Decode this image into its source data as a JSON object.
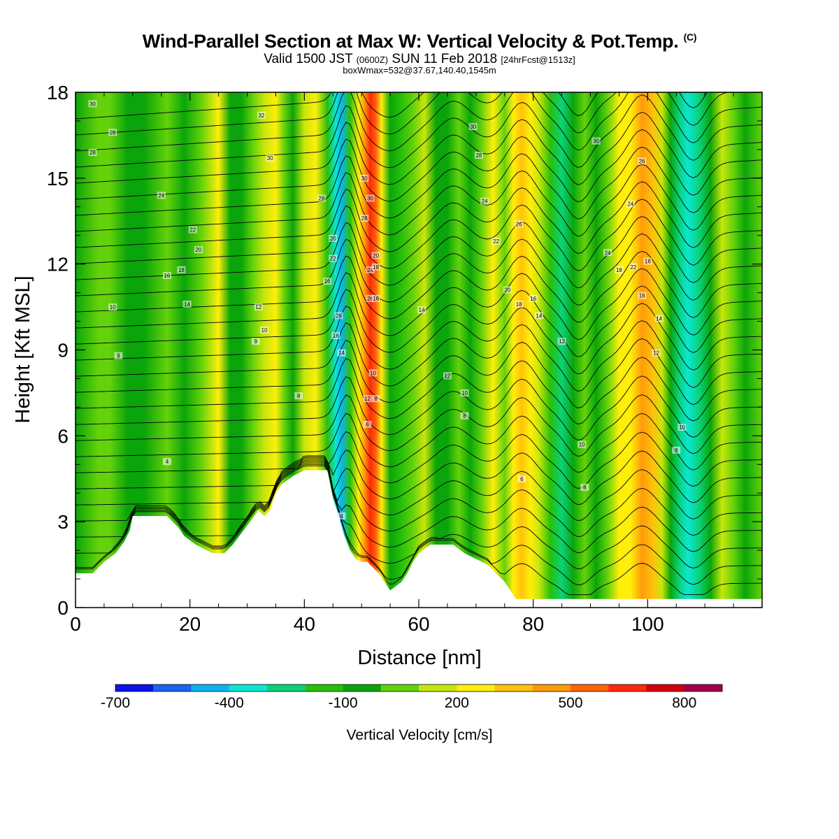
{
  "header": {
    "title": "Wind-Parallel Section at Max W: Vertical Velocity & Pot.Temp.",
    "title_suffix": "(C)",
    "valid_prefix": "Valid 1500 JST",
    "valid_zulu": "(0600Z)",
    "valid_date": "SUN 11 Feb 2018",
    "valid_fcst": "[24hrFcst@1513z]",
    "box_info": "boxWmax=532@37.67,140.40,1545m"
  },
  "chart_data": {
    "type": "heatmap",
    "xlabel": "Distance [nm]",
    "ylabel": "Height [Kft MSL]",
    "xlim": [
      0,
      120
    ],
    "ylim": [
      0,
      18
    ],
    "x_ticks": [
      0,
      20,
      40,
      60,
      80,
      100
    ],
    "y_ticks": [
      0,
      3,
      6,
      9,
      12,
      15,
      18
    ],
    "grid": false,
    "colorbar": {
      "label": "Vertical Velocity [cm/s]",
      "tick_labels": [
        "-700",
        "-400",
        "-100",
        "200",
        "500",
        "800"
      ],
      "tick_values": [
        -700,
        -400,
        -100,
        200,
        500,
        800
      ],
      "levels": [
        -700,
        -600,
        -500,
        -400,
        -300,
        -200,
        -100,
        0,
        100,
        200,
        300,
        400,
        500,
        600,
        700,
        800,
        900
      ],
      "colors": [
        "#0a14e6",
        "#1e64f0",
        "#0ab4f0",
        "#0ae6d2",
        "#0ad27a",
        "#28c00a",
        "#0aa50a",
        "#64d20a",
        "#c8e60a",
        "#ffee0a",
        "#ffc30a",
        "#ff9b0a",
        "#ff640a",
        "#ff280a",
        "#d2000a",
        "#a0004a",
        "#6e008c"
      ]
    },
    "vertical_velocity_columns": [
      {
        "x": 0,
        "w": -50
      },
      {
        "x": 4,
        "w": 0
      },
      {
        "x": 6,
        "w": 20
      },
      {
        "x": 9,
        "w": -20
      },
      {
        "x": 12,
        "w": -30
      },
      {
        "x": 16,
        "w": 30
      },
      {
        "x": 19,
        "w": -10
      },
      {
        "x": 22,
        "w": 80
      },
      {
        "x": 25,
        "w": 240
      },
      {
        "x": 27,
        "w": -20
      },
      {
        "x": 29,
        "w": -60
      },
      {
        "x": 31,
        "w": 30
      },
      {
        "x": 33,
        "w": 180
      },
      {
        "x": 35,
        "w": 230
      },
      {
        "x": 36.5,
        "w": 20
      },
      {
        "x": 38,
        "w": -100
      },
      {
        "x": 40,
        "w": 100
      },
      {
        "x": 42,
        "w": 220
      },
      {
        "x": 44,
        "w": -150
      },
      {
        "x": 45.5,
        "w": -350
      },
      {
        "x": 46.5,
        "w": -450
      },
      {
        "x": 48,
        "w": -200
      },
      {
        "x": 49.5,
        "w": 250
      },
      {
        "x": 50.5,
        "w": 450
      },
      {
        "x": 51.5,
        "w": 620
      },
      {
        "x": 52.5,
        "w": 500
      },
      {
        "x": 53.5,
        "w": 250
      },
      {
        "x": 55,
        "w": -40
      },
      {
        "x": 57,
        "w": -140
      },
      {
        "x": 59,
        "w": 30
      },
      {
        "x": 61,
        "w": 150
      },
      {
        "x": 63,
        "w": -20
      },
      {
        "x": 65,
        "w": -80
      },
      {
        "x": 67,
        "w": 60
      },
      {
        "x": 69,
        "w": -100
      },
      {
        "x": 71,
        "w": 80
      },
      {
        "x": 73,
        "w": 200
      },
      {
        "x": 75,
        "w": 60
      },
      {
        "x": 76.5,
        "w": 200
      },
      {
        "x": 78,
        "w": 380
      },
      {
        "x": 79.5,
        "w": 280
      },
      {
        "x": 81,
        "w": 100
      },
      {
        "x": 83,
        "w": -150
      },
      {
        "x": 85,
        "w": -250
      },
      {
        "x": 87,
        "w": -100
      },
      {
        "x": 89,
        "w": 80
      },
      {
        "x": 91,
        "w": -80
      },
      {
        "x": 93,
        "w": 20
      },
      {
        "x": 95,
        "w": 200
      },
      {
        "x": 97,
        "w": 260
      },
      {
        "x": 99,
        "w": 400
      },
      {
        "x": 101,
        "w": 300
      },
      {
        "x": 102.5,
        "w": 150
      },
      {
        "x": 104,
        "w": -100
      },
      {
        "x": 105.5,
        "w": -250
      },
      {
        "x": 107,
        "w": -380
      },
      {
        "x": 109,
        "w": -230
      },
      {
        "x": 111,
        "w": -30
      },
      {
        "x": 113,
        "w": 150
      },
      {
        "x": 115,
        "w": 60
      },
      {
        "x": 117,
        "w": -30
      },
      {
        "x": 120,
        "w": 30
      }
    ],
    "terrain_kft": [
      {
        "x": 0,
        "h": 1.2
      },
      {
        "x": 3,
        "h": 1.2
      },
      {
        "x": 5,
        "h": 1.6
      },
      {
        "x": 7,
        "h": 1.9
      },
      {
        "x": 8.5,
        "h": 2.3
      },
      {
        "x": 9.5,
        "h": 2.7
      },
      {
        "x": 10,
        "h": 3.2
      },
      {
        "x": 16,
        "h": 3.2
      },
      {
        "x": 18,
        "h": 2.8
      },
      {
        "x": 19,
        "h": 2.5
      },
      {
        "x": 21,
        "h": 2.2
      },
      {
        "x": 24,
        "h": 1.9
      },
      {
        "x": 26,
        "h": 1.9
      },
      {
        "x": 27.5,
        "h": 2.2
      },
      {
        "x": 29,
        "h": 2.6
      },
      {
        "x": 30.5,
        "h": 3.0
      },
      {
        "x": 32,
        "h": 3.4
      },
      {
        "x": 33,
        "h": 3.2
      },
      {
        "x": 34,
        "h": 3.4
      },
      {
        "x": 35,
        "h": 4.0
      },
      {
        "x": 36,
        "h": 4.3
      },
      {
        "x": 38,
        "h": 4.6
      },
      {
        "x": 40,
        "h": 4.8
      },
      {
        "x": 44,
        "h": 4.8
      },
      {
        "x": 45,
        "h": 3.8
      },
      {
        "x": 46,
        "h": 3.2
      },
      {
        "x": 47,
        "h": 2.5
      },
      {
        "x": 48,
        "h": 2.0
      },
      {
        "x": 49,
        "h": 1.7
      },
      {
        "x": 50,
        "h": 1.6
      },
      {
        "x": 51,
        "h": 1.6
      },
      {
        "x": 52,
        "h": 1.4
      },
      {
        "x": 53,
        "h": 1.2
      },
      {
        "x": 54,
        "h": 0.9
      },
      {
        "x": 55,
        "h": 0.6
      },
      {
        "x": 57,
        "h": 0.9
      },
      {
        "x": 58,
        "h": 1.2
      },
      {
        "x": 59,
        "h": 1.6
      },
      {
        "x": 60,
        "h": 1.9
      },
      {
        "x": 62,
        "h": 2.2
      },
      {
        "x": 66,
        "h": 2.2
      },
      {
        "x": 68,
        "h": 1.9
      },
      {
        "x": 70,
        "h": 1.7
      },
      {
        "x": 72,
        "h": 1.5
      },
      {
        "x": 73.5,
        "h": 1.2
      },
      {
        "x": 75,
        "h": 0.9
      },
      {
        "x": 76,
        "h": 0.6
      },
      {
        "x": 77,
        "h": 0.3
      },
      {
        "x": 120,
        "h": 0.3
      }
    ],
    "theta_contour_labels": [
      {
        "x": 3,
        "y": 17.6,
        "t": "30"
      },
      {
        "x": 6.5,
        "y": 16.6,
        "t": "28"
      },
      {
        "x": 3,
        "y": 15.9,
        "t": "28"
      },
      {
        "x": 15,
        "y": 14.4,
        "t": "24"
      },
      {
        "x": 20.5,
        "y": 13.2,
        "t": "22"
      },
      {
        "x": 21.5,
        "y": 12.5,
        "t": "20"
      },
      {
        "x": 18.5,
        "y": 11.8,
        "t": "18"
      },
      {
        "x": 16,
        "y": 11.6,
        "t": "16"
      },
      {
        "x": 6.5,
        "y": 10.5,
        "t": "10"
      },
      {
        "x": 19.5,
        "y": 10.6,
        "t": "14"
      },
      {
        "x": 32,
        "y": 10.5,
        "t": "12"
      },
      {
        "x": 33,
        "y": 9.7,
        "t": "10"
      },
      {
        "x": 31.5,
        "y": 9.3,
        "t": "9"
      },
      {
        "x": 7.5,
        "y": 8.8,
        "t": "9"
      },
      {
        "x": 39,
        "y": 7.4,
        "t": "8"
      },
      {
        "x": 16,
        "y": 5.1,
        "t": "4"
      },
      {
        "x": 32.5,
        "y": 17.2,
        "t": "32"
      },
      {
        "x": 34,
        "y": 15.7,
        "t": "30"
      },
      {
        "x": 43,
        "y": 14.3,
        "t": "28"
      },
      {
        "x": 50.5,
        "y": 15.0,
        "t": "30"
      },
      {
        "x": 51.5,
        "y": 14.3,
        "t": "30"
      },
      {
        "x": 50.5,
        "y": 13.6,
        "t": "28"
      },
      {
        "x": 45,
        "y": 12.9,
        "t": "20"
      },
      {
        "x": 45,
        "y": 12.2,
        "t": "22"
      },
      {
        "x": 52.5,
        "y": 12.3,
        "t": "20"
      },
      {
        "x": 51.5,
        "y": 11.8,
        "t": "24"
      },
      {
        "x": 52.5,
        "y": 11.9,
        "t": "18"
      },
      {
        "x": 44,
        "y": 11.4,
        "t": "16"
      },
      {
        "x": 51.5,
        "y": 10.8,
        "t": "26"
      },
      {
        "x": 52.5,
        "y": 10.8,
        "t": "16"
      },
      {
        "x": 46,
        "y": 10.2,
        "t": "28"
      },
      {
        "x": 45.5,
        "y": 9.5,
        "t": "16"
      },
      {
        "x": 46.5,
        "y": 8.9,
        "t": "14"
      },
      {
        "x": 52,
        "y": 8.2,
        "t": "10"
      },
      {
        "x": 51,
        "y": 7.3,
        "t": "12"
      },
      {
        "x": 52.5,
        "y": 7.3,
        "t": "8"
      },
      {
        "x": 51,
        "y": 6.4,
        "t": "6"
      },
      {
        "x": 46.5,
        "y": 3.2,
        "t": "4"
      },
      {
        "x": 60.5,
        "y": 10.4,
        "t": "14"
      },
      {
        "x": 65,
        "y": 8.1,
        "t": "12"
      },
      {
        "x": 68,
        "y": 7.5,
        "t": "10"
      },
      {
        "x": 68,
        "y": 6.7,
        "t": "8"
      },
      {
        "x": 69.5,
        "y": 16.8,
        "t": "30"
      },
      {
        "x": 70.5,
        "y": 15.8,
        "t": "28"
      },
      {
        "x": 71.5,
        "y": 14.2,
        "t": "24"
      },
      {
        "x": 73.5,
        "y": 12.8,
        "t": "22"
      },
      {
        "x": 75.5,
        "y": 11.1,
        "t": "20"
      },
      {
        "x": 77.5,
        "y": 10.6,
        "t": "18"
      },
      {
        "x": 80,
        "y": 10.8,
        "t": "16"
      },
      {
        "x": 81,
        "y": 10.2,
        "t": "14"
      },
      {
        "x": 77.5,
        "y": 13.4,
        "t": "26"
      },
      {
        "x": 85,
        "y": 9.3,
        "t": "12"
      },
      {
        "x": 88.5,
        "y": 5.7,
        "t": "10"
      },
      {
        "x": 89,
        "y": 4.2,
        "t": "8"
      },
      {
        "x": 78,
        "y": 4.5,
        "t": "6"
      },
      {
        "x": 91,
        "y": 16.3,
        "t": "30"
      },
      {
        "x": 99,
        "y": 15.6,
        "t": "26"
      },
      {
        "x": 97,
        "y": 14.1,
        "t": "24"
      },
      {
        "x": 93,
        "y": 12.4,
        "t": "24"
      },
      {
        "x": 95,
        "y": 11.8,
        "t": "18"
      },
      {
        "x": 97.5,
        "y": 11.9,
        "t": "22"
      },
      {
        "x": 100,
        "y": 12.1,
        "t": "18"
      },
      {
        "x": 99,
        "y": 10.9,
        "t": "16"
      },
      {
        "x": 102,
        "y": 10.1,
        "t": "14"
      },
      {
        "x": 101.5,
        "y": 8.9,
        "t": "12"
      },
      {
        "x": 106,
        "y": 6.3,
        "t": "10"
      },
      {
        "x": 105,
        "y": 5.5,
        "t": "8"
      }
    ]
  }
}
